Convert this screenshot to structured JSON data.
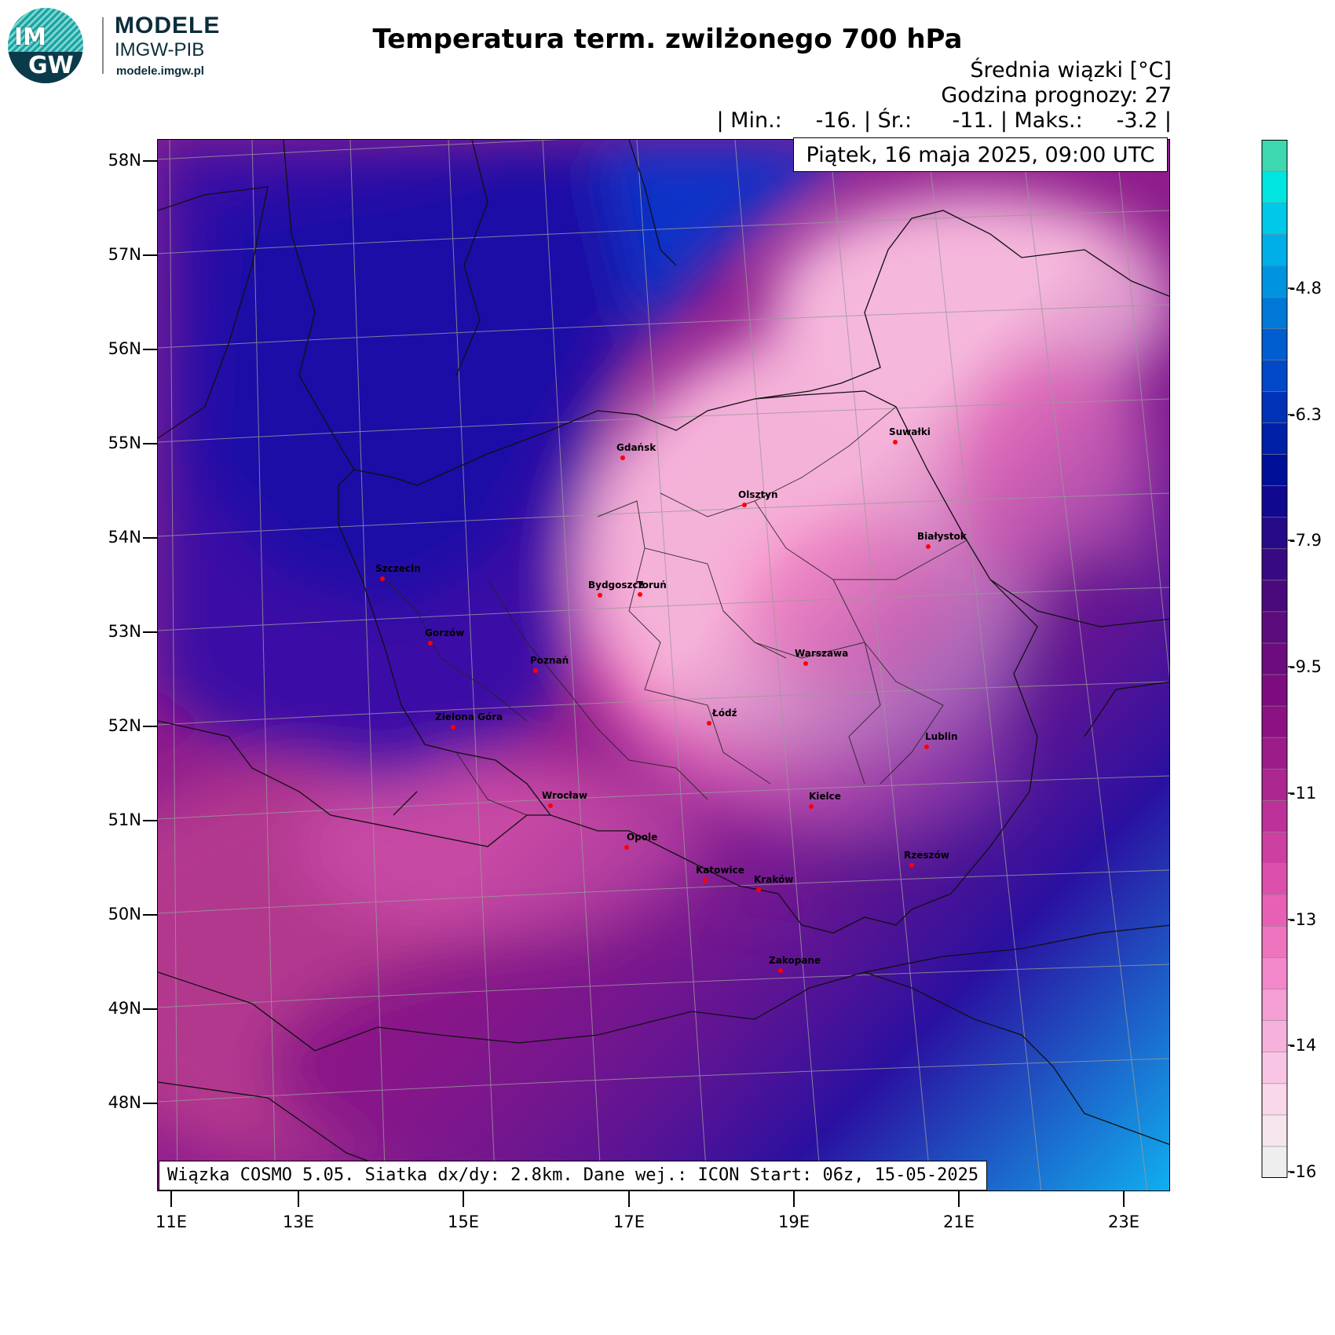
{
  "logo": {
    "letters_top": "IM",
    "letters_bottom": "GW",
    "brand": "MODELE",
    "org": "IMGW-PIB",
    "url": "modele.imgw.pl"
  },
  "header": {
    "title": "Temperatura term. zwilżonego 700 hPa",
    "subtitle": "Średnia wiązki [°C]",
    "forecast_hour": "Godzina prognozy: 27",
    "stats": "| Min.:     -16. | Śr.:      -11. | Maks.:     -3.2 |",
    "date": "Piątek, 16 maja 2025, 09:00 UTC"
  },
  "footer": {
    "run_info": "Wiązka COSMO 5.05. Siatka dx/dy: 2.8km. Dane wej.: ICON Start: 06z, 15-05-2025"
  },
  "latitude_labels": [
    "58N",
    "57N",
    "56N",
    "55N",
    "54N",
    "53N",
    "52N",
    "51N",
    "50N",
    "49N",
    "48N"
  ],
  "longitude_labels": [
    "11E",
    "13E",
    "15E",
    "17E",
    "19E",
    "21E",
    "23E"
  ],
  "colorbar": {
    "ticks": [
      "-4.8",
      "-6.3",
      "-7.9",
      "-9.5",
      "-11",
      "-13",
      "-14",
      "-16"
    ],
    "colors": [
      "#3ed8b0",
      "#00e5e0",
      "#00c8e8",
      "#00aee8",
      "#0094e0",
      "#0078d8",
      "#005ed0",
      "#0048c8",
      "#0032b8",
      "#0020a8",
      "#000f98",
      "#10088e",
      "#260a88",
      "#380a82",
      "#4a0a7c",
      "#5c0c7c",
      "#6c0c7e",
      "#7c0c80",
      "#8c1284",
      "#9c1c8a",
      "#ac2690",
      "#bc3298",
      "#cc40a2",
      "#dc50ac",
      "#e860b6",
      "#ee74c0",
      "#f288ca",
      "#f49ed4",
      "#f6b2dc",
      "#f8c6e4",
      "#f8d8ea",
      "#f4e6ec",
      "#eeeeee"
    ]
  },
  "cities": [
    "Gdańsk",
    "Suwałki",
    "Olsztyn",
    "Białystok",
    "Szczecin",
    "Bydgoszcz",
    "Toruń",
    "Gorzów",
    "Poznań",
    "Warszawa",
    "Łódź",
    "Zielona Góra",
    "Lublin",
    "Wrocław",
    "Kielce",
    "Opole",
    "Rzeszów",
    "Katowice",
    "Kraków",
    "Zakopane"
  ]
}
